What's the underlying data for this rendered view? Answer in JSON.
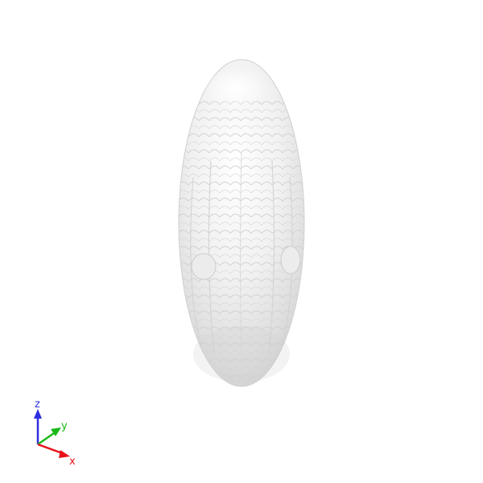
{
  "viewer": {
    "background_color": "#ffffff",
    "model": {
      "name": "ellipsoidal-cell",
      "surface_color": "#e8e8e8"
    },
    "axes_triad": {
      "x": {
        "label": "x",
        "color": "#e8121a"
      },
      "y": {
        "label": "y",
        "color": "#1ab81a"
      },
      "z": {
        "label": "z",
        "color": "#2f2fe0"
      }
    }
  }
}
